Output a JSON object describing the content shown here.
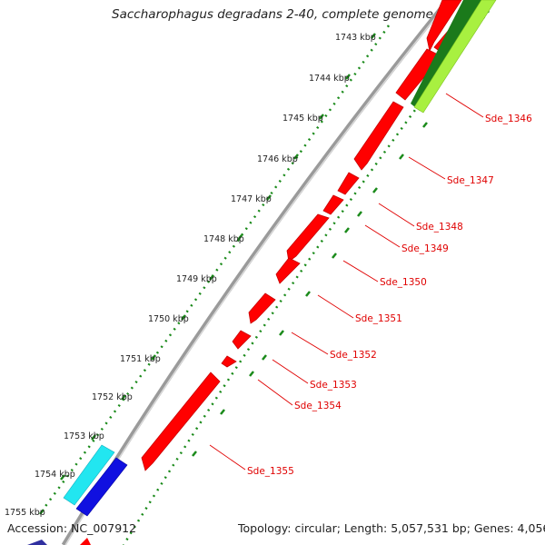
{
  "title": "Saccharophagus degradans 2-40, complete genome",
  "footer": {
    "accession": "Accession: NC_007912",
    "summary": "Topology: circular; Length: 5,057,531 bp; Genes: 4,056"
  },
  "scale_labels": [
    "1743 kbp",
    "1744 kbp",
    "1745 kbp",
    "1746 kbp",
    "1747 kbp",
    "1748 kbp",
    "1749 kbp",
    "1750 kbp",
    "1751 kbp",
    "1752 kbp",
    "1753 kbp",
    "1754 kbp",
    "1755 kbp"
  ],
  "gene_labels": [
    "Sde_1346",
    "Sde_1347",
    "Sde_1348",
    "Sde_1349",
    "Sde_1350",
    "Sde_1351",
    "Sde_1352",
    "Sde_1353",
    "Sde_1354",
    "Sde_1355"
  ],
  "colors": {
    "backbone": "#8a8a8a",
    "gene_red": "#ff0000",
    "gene_label": "#e00000",
    "scale_tick": "#1a8a1a",
    "cyan_feature": "#22e6f0",
    "blue_feature": "#1010e0",
    "green_dark": "#1b7a1b",
    "green_light": "#a8f040"
  }
}
